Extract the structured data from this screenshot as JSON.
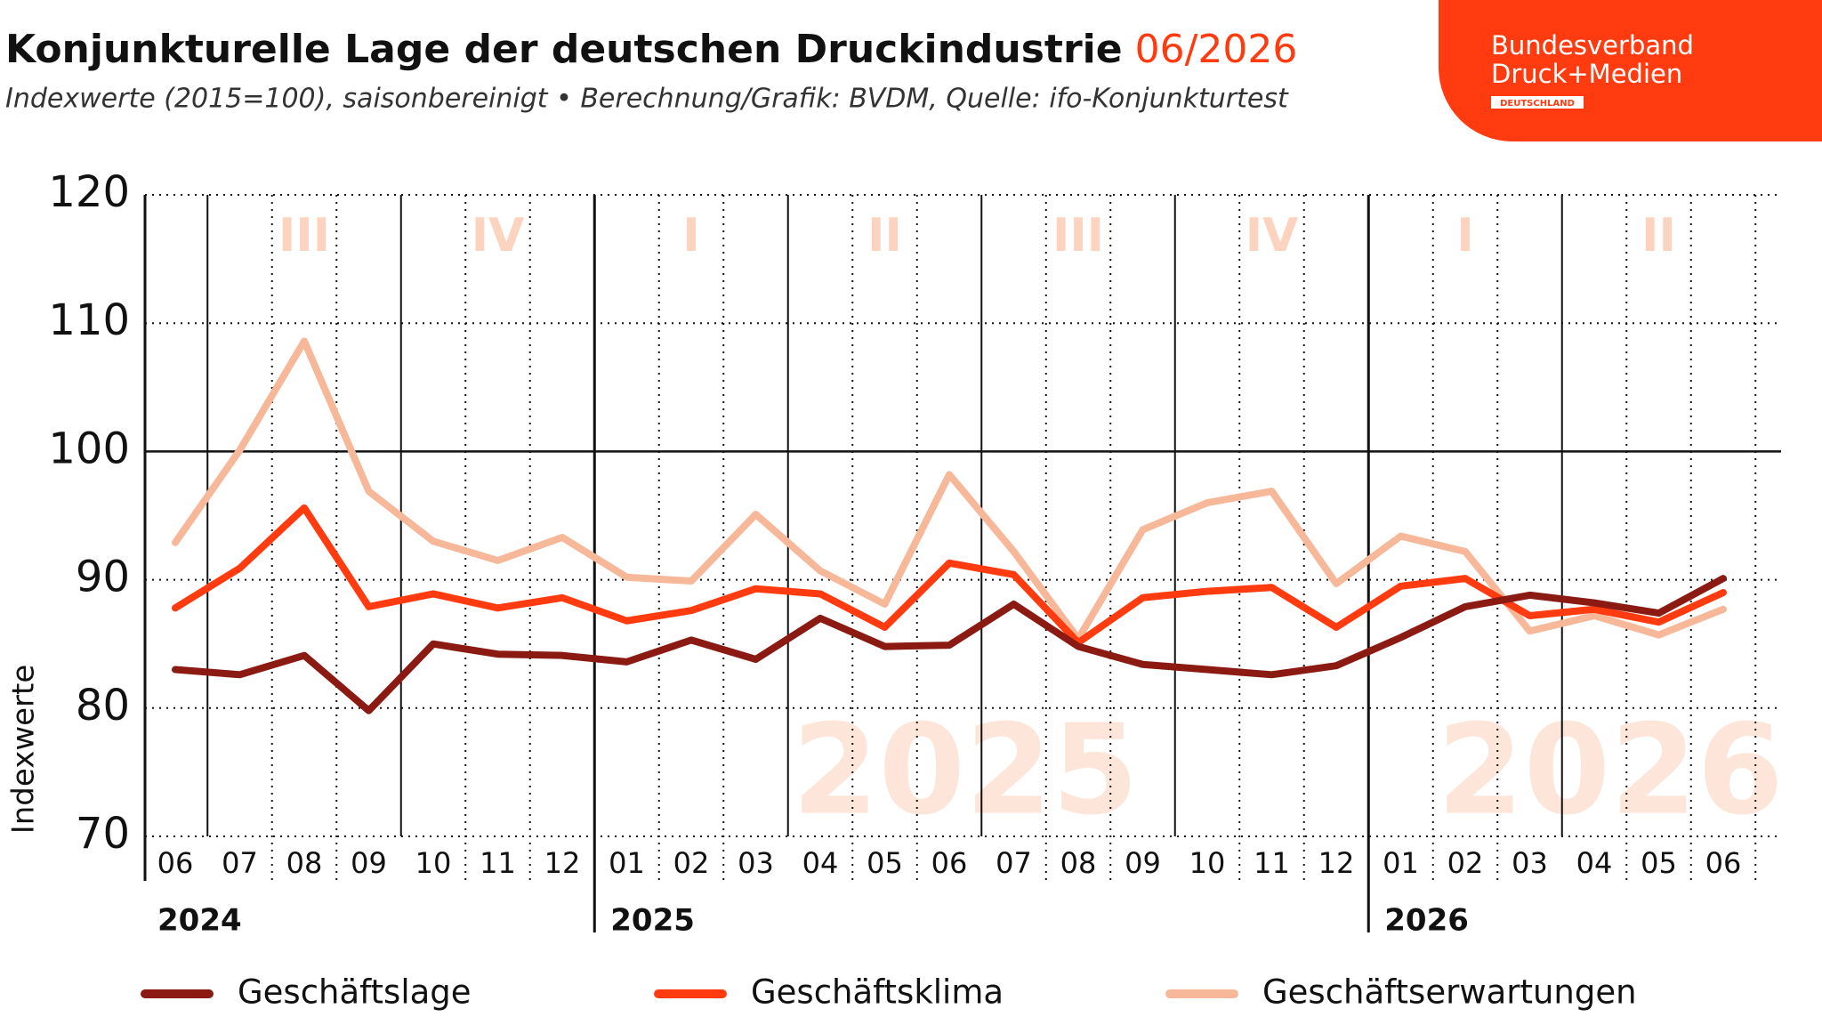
{
  "chart_data": {
    "type": "line",
    "title": "Konjunkturelle Lage der deutschen Druckindustrie",
    "title_date": "06/2026",
    "subtitle": "Indexwerte (2015=100), saisonbereinigt • Berechnung/Grafik: BVDM, Quelle: ifo-Konjunkturtest",
    "logo": [
      "Bundesverband",
      "Druck+Medien",
      "DEUTSCHLAND"
    ],
    "y_label": "Indexwerte",
    "categories": [
      "06",
      "07",
      "08",
      "09",
      "10",
      "11",
      "12",
      "01",
      "02",
      "03",
      "04",
      "05",
      "06",
      "07",
      "08",
      "09",
      "10",
      "11",
      "12",
      "01",
      "02",
      "03",
      "04",
      "05",
      "06"
    ],
    "years": [
      "2024",
      "2025",
      "2026"
    ],
    "quarters": [
      "III",
      "IV",
      "I",
      "II",
      "III",
      "IV",
      "I",
      "II"
    ],
    "watermarks": [
      "2025",
      "2026"
    ],
    "ylim": [
      70,
      120
    ],
    "yticks": [
      70,
      80,
      90,
      100,
      110,
      120
    ],
    "baseline": 100,
    "grid": true,
    "series": [
      {
        "name": "Geschäftslage",
        "color": "#8b1a12",
        "values": [
          83.0,
          82.6,
          84.1,
          79.8,
          85.0,
          84.2,
          84.1,
          83.6,
          85.3,
          83.8,
          87.0,
          84.8,
          84.9,
          88.1,
          84.8,
          83.4,
          83.0,
          82.6,
          83.3,
          85.5,
          87.9,
          88.8,
          88.2,
          87.4,
          90.1
        ]
      },
      {
        "name": "Geschäftsklima",
        "color": "#ff3b0f",
        "values": [
          87.8,
          90.9,
          95.6,
          87.9,
          88.9,
          87.8,
          88.6,
          86.8,
          87.6,
          89.3,
          88.9,
          86.3,
          91.3,
          90.4,
          85.1,
          88.6,
          89.1,
          89.4,
          86.3,
          89.5,
          90.1,
          87.2,
          87.7,
          86.7,
          89.0
        ]
      },
      {
        "name": "Geschäftserwartungen",
        "color": "#f7b89a",
        "values": [
          92.9,
          100.1,
          108.6,
          96.9,
          93.0,
          91.5,
          93.3,
          90.2,
          89.9,
          95.1,
          90.7,
          88.1,
          98.2,
          92.2,
          85.4,
          93.9,
          96.0,
          96.9,
          89.7,
          93.4,
          92.2,
          86.0,
          87.2,
          85.7,
          87.7
        ]
      }
    ]
  }
}
